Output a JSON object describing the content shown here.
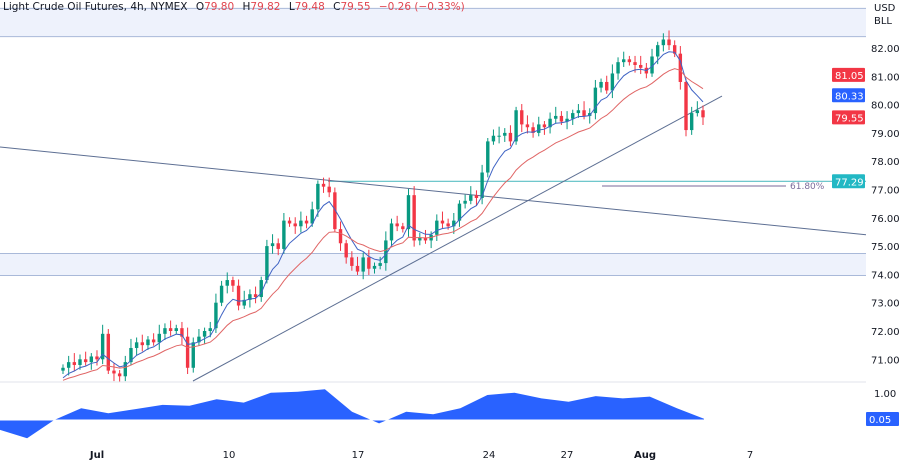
{
  "header": {
    "title": "Light Crude Oil Futures, 4h, NYMEX",
    "o_label": "O",
    "o": "79.80",
    "h_label": "H",
    "h": "79.82",
    "l_label": "L",
    "l": "79.48",
    "c_label": "C",
    "c": "79.55",
    "change": "−0.26 (−0.33%)"
  },
  "currency": {
    "line1": "USD",
    "line2": "BLL"
  },
  "colors": {
    "up": "#089981",
    "down": "#f23645",
    "ma_fast": "#3f63c4",
    "ma_slow": "#e06666",
    "trendline": "#5d6f93",
    "level": "#5bbfc4",
    "zone_fill": "#eef2fc",
    "zone_border": "#a9b9d9",
    "oscillator": "#2962ff",
    "fib": "#7a6a9a"
  },
  "chart_data": [
    {
      "type": "candlestick",
      "timeframe": "4h",
      "x_ticks": [
        "Jul",
        "10",
        "17",
        "24",
        "27",
        "Aug",
        "7"
      ],
      "y_ticks": [
        "82.00",
        "81.00",
        "80.00",
        "79.00",
        "78.00",
        "77.00",
        "76.00",
        "75.00",
        "74.00",
        "73.00",
        "72.00",
        "71.00"
      ],
      "ylim": [
        70.4,
        83.4
      ],
      "close": [
        70.7,
        70.9,
        70.8,
        71.0,
        70.9,
        71.1,
        71.0,
        71.9,
        70.6,
        70.5,
        70.4,
        70.9,
        71.4,
        71.6,
        71.5,
        71.7,
        71.6,
        71.9,
        72.1,
        72.0,
        72.1,
        71.8,
        70.7,
        71.6,
        71.8,
        72.0,
        72.1,
        73.0,
        73.6,
        73.8,
        73.6,
        72.9,
        73.1,
        73.3,
        73.2,
        73.8,
        75.0,
        75.1,
        74.9,
        75.9,
        75.8,
        75.7,
        75.9,
        75.8,
        76.3,
        77.2,
        77.1,
        76.9,
        75.6,
        75.1,
        74.6,
        74.3,
        74.1,
        74.6,
        74.2,
        74.3,
        74.4,
        75.2,
        75.8,
        75.7,
        75.6,
        76.8,
        75.2,
        75.3,
        75.2,
        75.4,
        75.9,
        75.8,
        75.7,
        75.9,
        76.5,
        76.6,
        76.8,
        76.7,
        77.6,
        78.7,
        78.9,
        78.9,
        79.0,
        78.7,
        79.8,
        79.3,
        79.2,
        79.0,
        79.3,
        79.2,
        79.5,
        79.6,
        79.4,
        79.5,
        79.7,
        79.8,
        79.6,
        79.7,
        80.6,
        80.8,
        80.5,
        81.1,
        81.5,
        81.6,
        81.5,
        81.4,
        81.3,
        81.1,
        81.7,
        82.1,
        82.3,
        82.1,
        81.8,
        80.8,
        79.1,
        79.7,
        79.8,
        79.55
      ],
      "last_price": "79.55",
      "ma_fast_value": "80.33",
      "ma_slow_value": "81.05",
      "levels": [
        {
          "type": "zone",
          "from": 82.4,
          "to": 83.4
        },
        {
          "type": "zone",
          "from": 73.96,
          "to": 74.74
        },
        {
          "type": "horizontal",
          "price": 77.29,
          "label": "77.29"
        },
        {
          "type": "fib",
          "price": 77.15,
          "label": "61.80%"
        }
      ],
      "trendlines": [
        {
          "name": "descending",
          "from_price": 78.5,
          "to_price": 75.4
        },
        {
          "name": "ascending",
          "from_price": 70.8,
          "to_price": 80.3
        }
      ]
    },
    {
      "type": "area",
      "y_ticks": [
        "1.00"
      ],
      "last_value": "0.05",
      "values": [
        -0.38,
        -0.7,
        0,
        0.45,
        0.26,
        0.42,
        0.58,
        0.55,
        0.8,
        0.67,
        1.05,
        1.09,
        1.18,
        0.32,
        -0.13,
        0.32,
        0.22,
        0.45,
        0.96,
        1.05,
        0.83,
        0.7,
        0.92,
        0.83,
        0.9,
        0.45,
        0.05
      ]
    }
  ]
}
